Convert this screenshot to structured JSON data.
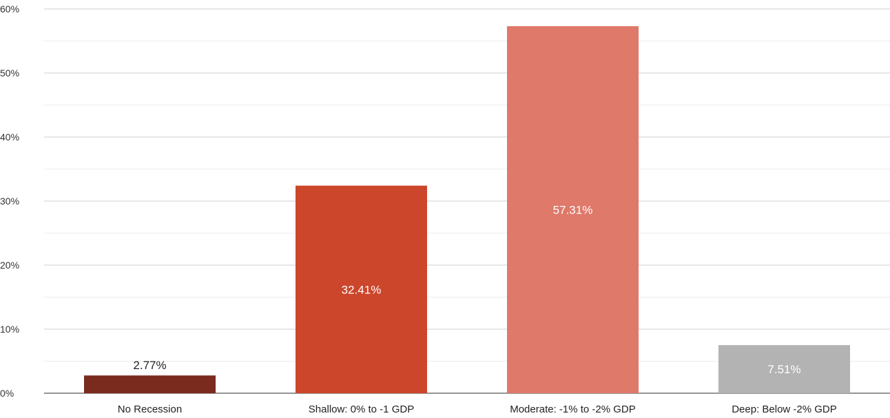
{
  "chart_data": {
    "type": "bar",
    "categories": [
      "No Recession",
      "Shallow: 0% to -1 GDP",
      "Moderate: -1% to -2% GDP",
      "Deep: Below -2% GDP"
    ],
    "values": [
      2.77,
      32.41,
      57.31,
      7.51
    ],
    "value_labels": [
      "2.77%",
      "32.41%",
      "57.31%",
      "7.51%"
    ],
    "colors": [
      "#7b2a1e",
      "#cb462b",
      "#df796a",
      "#b3b3b3"
    ],
    "label_colors": [
      "#222222",
      "#ffffff",
      "#ffffff",
      "#ffffff"
    ],
    "label_position": [
      "above",
      "inside",
      "inside",
      "inside"
    ],
    "ylim": [
      0,
      60
    ],
    "yticks": [
      0,
      10,
      20,
      30,
      40,
      50,
      60
    ],
    "ytick_labels": [
      "0%",
      "10%",
      "20%",
      "30%",
      "40%",
      "50%",
      "60%"
    ],
    "grid": true,
    "title": "",
    "xlabel": "",
    "ylabel": ""
  }
}
